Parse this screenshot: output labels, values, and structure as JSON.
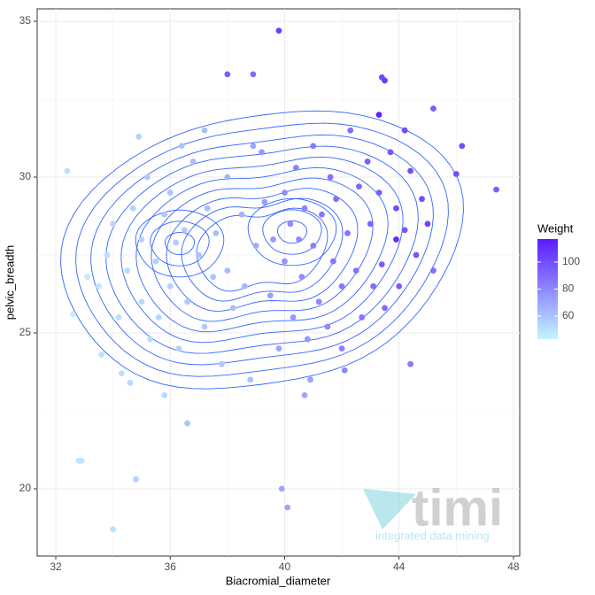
{
  "chart_data": {
    "type": "scatter",
    "x_label": "Biacromial_diameter",
    "y_label": "pelvic_breadth",
    "xlim": [
      31.35,
      48.22
    ],
    "ylim": [
      17.84,
      35.4
    ],
    "xticks": [
      32,
      36,
      40,
      44,
      48
    ],
    "yticks": [
      20,
      25,
      30,
      35
    ],
    "grid": true,
    "x": [
      39.8,
      38,
      38.9,
      43.4,
      43.5,
      43.3,
      45.2,
      46.2,
      47.4,
      32.4,
      32.8,
      32.9,
      34.8,
      34,
      39.9,
      40.1,
      36.6,
      44.4,
      32.6,
      33.6,
      34.6,
      40.7,
      45.2,
      46,
      43.9,
      33.5,
      33.8,
      34,
      34.2,
      34.5,
      34.7,
      35,
      35,
      35.2,
      35.3,
      35.5,
      35.6,
      35.8,
      36,
      36,
      36.2,
      36.3,
      36.5,
      36.6,
      36.8,
      37,
      37.2,
      37.3,
      37.5,
      37.6,
      37.8,
      38,
      38,
      38.2,
      38.5,
      38.6,
      38.8,
      38.9,
      39,
      34.3,
      35.8,
      37.2,
      36.4,
      33.1,
      34.9,
      39.3,
      39.5,
      39.6,
      39.8,
      40,
      40,
      40.2,
      40.3,
      40.4,
      40.5,
      40.6,
      40.7,
      40.8,
      41,
      41,
      41.2,
      41.3,
      41.5,
      41.6,
      41.7,
      41.8,
      42,
      42,
      42.2,
      42.3,
      42.5,
      42.6,
      42.7,
      42.9,
      43,
      43.1,
      43.3,
      43.4,
      43.5,
      43.7,
      43.9,
      44,
      44.2,
      44.4,
      44.6,
      44.8,
      45,
      44.2,
      39.2,
      40.9,
      42.1
    ],
    "values": [
      34.7,
      33.3,
      33.3,
      33.2,
      33.1,
      32,
      32.2,
      31,
      29.6,
      30.2,
      20.9,
      20.9,
      20.3,
      18.7,
      20,
      19.4,
      22.1,
      24,
      25.6,
      24.3,
      23.4,
      23,
      27,
      30.1,
      28,
      26.5,
      27.5,
      28.5,
      25.5,
      27,
      29,
      26,
      28,
      30,
      24.8,
      27.3,
      25.5,
      28.8,
      26.5,
      29.5,
      27.9,
      24.5,
      28.3,
      26,
      30.5,
      27.5,
      25.2,
      29,
      26.8,
      28.2,
      24,
      30,
      27,
      25.8,
      28.8,
      26.5,
      23.5,
      31,
      27.8,
      23.7,
      23,
      31.5,
      31,
      26.8,
      31.3,
      29.2,
      26.2,
      28,
      24.5,
      29.5,
      27.3,
      28.5,
      25.5,
      30.3,
      28,
      26.8,
      29,
      24.8,
      27.8,
      31,
      26,
      28.8,
      25.2,
      30,
      27.3,
      29.3,
      26.5,
      24.5,
      28.2,
      31.5,
      27,
      29.7,
      25.5,
      30.5,
      28.5,
      26.5,
      29.5,
      27.2,
      25.8,
      30.8,
      29,
      26.5,
      28.3,
      30.2,
      27.5,
      29.3,
      28.5,
      31.5,
      30.8,
      23.5,
      23.8
    ],
    "color_values": [
      105,
      95,
      90,
      100,
      105,
      115,
      95,
      100,
      95,
      50,
      48,
      48,
      55,
      50,
      70,
      70,
      60,
      85,
      45,
      50,
      52,
      70,
      90,
      100,
      110,
      48,
      50,
      52,
      50,
      52,
      55,
      52,
      55,
      58,
      52,
      55,
      53,
      58,
      56,
      60,
      57,
      55,
      58,
      57,
      62,
      60,
      58,
      62,
      60,
      62,
      58,
      65,
      63,
      62,
      66,
      64,
      60,
      70,
      68,
      50,
      52,
      62,
      60,
      47,
      55,
      72,
      72,
      74,
      70,
      78,
      76,
      80,
      75,
      82,
      80,
      78,
      82,
      75,
      84,
      85,
      80,
      86,
      80,
      88,
      86,
      88,
      85,
      82,
      88,
      90,
      88,
      92,
      86,
      94,
      92,
      90,
      96,
      95,
      90,
      98,
      100,
      95,
      98,
      100,
      98,
      100,
      102,
      100,
      75,
      72,
      80
    ],
    "colorscale": {
      "title": "Weight",
      "lim": [
        43,
        117
      ],
      "ticks": [
        60,
        80,
        100
      ],
      "colors": [
        "#c4f5ff",
        "#5a1bff"
      ]
    }
  },
  "watermark": {
    "logo": "timi",
    "tagline": "integrated data mining"
  }
}
